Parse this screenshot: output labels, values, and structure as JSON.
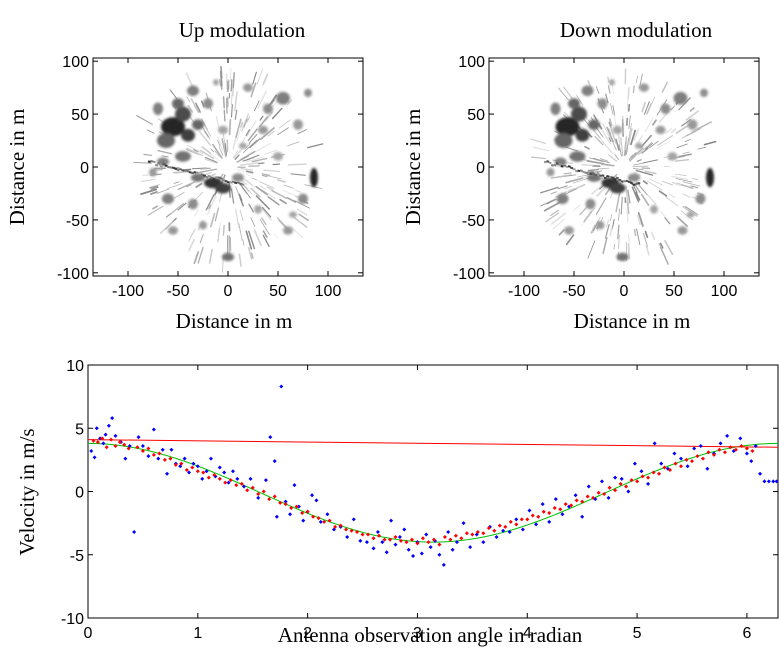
{
  "chart_data": [
    {
      "type": "heatmap",
      "title": "Up modulation",
      "xlabel": "Distance in m",
      "ylabel": "Distance in m",
      "xlim": [
        -135,
        135
      ],
      "ylim": [
        -103,
        103
      ],
      "xticks": [
        -100,
        -50,
        0,
        50,
        100
      ],
      "yticks": [
        -100,
        -50,
        0,
        50,
        100
      ],
      "grid": false,
      "colormap": "grayscale",
      "radius_max": 90
    },
    {
      "type": "heatmap",
      "title": "Down modulation",
      "xlabel": "Distance in m",
      "ylabel": "Distance in m",
      "xlim": [
        -135,
        135
      ],
      "ylim": [
        -103,
        103
      ],
      "xticks": [
        -100,
        -50,
        0,
        50,
        100
      ],
      "yticks": [
        -100,
        -50,
        0,
        50,
        100
      ],
      "grid": false,
      "colormap": "grayscale",
      "radius_max": 90
    },
    {
      "type": "scatter",
      "title": "",
      "xlabel": "Antenna observation angle in radian",
      "ylabel": "Velocity in m/s",
      "xlim": [
        0,
        6.2832
      ],
      "ylim": [
        -10,
        10
      ],
      "xticks": [
        0,
        1,
        2,
        3,
        4,
        5,
        6
      ],
      "yticks": [
        -10,
        -5,
        0,
        5,
        10
      ],
      "grid": false,
      "series": [
        {
          "kind": "points",
          "color": "#0000ff",
          "x": [
            0.03,
            0.06,
            0.08,
            0.11,
            0.14,
            0.16,
            0.19,
            0.22,
            0.25,
            0.3,
            0.34,
            0.38,
            0.42,
            0.46,
            0.5,
            0.55,
            0.6,
            0.64,
            0.68,
            0.72,
            0.76,
            0.8,
            0.84,
            0.88,
            0.92,
            0.96,
            1.0,
            1.04,
            1.08,
            1.12,
            1.16,
            1.2,
            1.24,
            1.28,
            1.32,
            1.36,
            1.42,
            1.48,
            1.55,
            1.62,
            1.66,
            1.7,
            1.72,
            1.76,
            1.8,
            1.84,
            1.88,
            1.92,
            1.96,
            2.0,
            2.04,
            2.08,
            2.12,
            2.18,
            2.24,
            2.3,
            2.36,
            2.42,
            2.48,
            2.54,
            2.6,
            2.64,
            2.68,
            2.72,
            2.76,
            2.8,
            2.84,
            2.88,
            2.92,
            2.96,
            3.0,
            3.04,
            3.08,
            3.12,
            3.16,
            3.2,
            3.24,
            3.28,
            3.32,
            3.36,
            3.42,
            3.48,
            3.54,
            3.6,
            3.66,
            3.72,
            3.78,
            3.84,
            3.9,
            3.96,
            4.02,
            4.08,
            4.14,
            4.2,
            4.26,
            4.32,
            4.38,
            4.44,
            4.5,
            4.56,
            4.62,
            4.68,
            4.74,
            4.8,
            4.86,
            4.92,
            4.98,
            5.04,
            5.1,
            5.16,
            5.22,
            5.28,
            5.34,
            5.4,
            5.46,
            5.52,
            5.58,
            5.64,
            5.7,
            5.76,
            5.82,
            5.88,
            5.94,
            6.0,
            6.04,
            6.08,
            6.12,
            6.16,
            6.2,
            6.24,
            6.27
          ],
          "y": [
            3.2,
            2.7,
            5.0,
            4.2,
            3.8,
            4.5,
            5.2,
            5.8,
            4.4,
            3.9,
            2.6,
            3.6,
            -3.2,
            4.3,
            3.6,
            2.8,
            4.9,
            2.6,
            3.3,
            1.4,
            3.3,
            2.2,
            2.0,
            2.6,
            1.5,
            2.2,
            2.0,
            1.0,
            1.6,
            2.6,
            1.2,
            1.9,
            1.5,
            0.7,
            1.6,
            1.0,
            0.4,
            1.0,
            -0.5,
            0.9,
            4.3,
            2.4,
            -2.0,
            8.3,
            -0.8,
            -1.8,
            0.5,
            -1.2,
            -2.3,
            -1.6,
            -0.3,
            -0.7,
            -2.4,
            -1.8,
            -3.0,
            -2.8,
            -3.6,
            -2.2,
            -3.9,
            -4.0,
            -4.5,
            -3.2,
            -4.0,
            -4.8,
            -2.3,
            -4.2,
            -3.6,
            -3.0,
            -4.6,
            -5.1,
            -4.0,
            -4.9,
            -3.4,
            -4.4,
            -3.9,
            -5.0,
            -5.8,
            -3.2,
            -4.6,
            -4.0,
            -2.5,
            -4.4,
            -3.4,
            -4.0,
            -2.8,
            -3.6,
            -3.1,
            -3.2,
            -2.2,
            -3.0,
            -1.5,
            -2.6,
            -1.0,
            -2.4,
            -0.6,
            -1.8,
            -1.2,
            -0.3,
            -2.0,
            0.4,
            -0.6,
            0.8,
            -0.5,
            1.1,
            1.0,
            0.0,
            2.2,
            1.6,
            0.6,
            3.8,
            2.2,
            1.8,
            3.0,
            2.6,
            2.0,
            3.4,
            3.6,
            1.8,
            3.0,
            3.8,
            4.4,
            3.2,
            4.2,
            3.0,
            2.4,
            3.6,
            1.4,
            0.8,
            0.8,
            0.8,
            0.8
          ]
        },
        {
          "kind": "points",
          "color": "#ff0000",
          "x": [
            0.05,
            0.09,
            0.13,
            0.17,
            0.21,
            0.25,
            0.29,
            0.33,
            0.37,
            0.45,
            0.5,
            0.55,
            0.6,
            0.65,
            0.7,
            0.75,
            0.8,
            0.85,
            0.9,
            0.95,
            1.0,
            1.05,
            1.1,
            1.15,
            1.2,
            1.25,
            1.3,
            1.35,
            1.4,
            1.45,
            1.5,
            1.55,
            1.6,
            1.65,
            1.7,
            1.75,
            1.8,
            1.85,
            1.9,
            1.95,
            2.0,
            2.05,
            2.1,
            2.15,
            2.2,
            2.25,
            2.3,
            2.35,
            2.4,
            2.45,
            2.5,
            2.55,
            2.6,
            2.65,
            2.7,
            2.75,
            2.8,
            2.85,
            2.9,
            2.95,
            3.0,
            3.05,
            3.1,
            3.15,
            3.2,
            3.25,
            3.3,
            3.35,
            3.4,
            3.45,
            3.5,
            3.55,
            3.6,
            3.65,
            3.7,
            3.75,
            3.8,
            3.85,
            3.9,
            3.95,
            4.0,
            4.05,
            4.1,
            4.15,
            4.2,
            4.25,
            4.3,
            4.35,
            4.4,
            4.45,
            4.5,
            4.55,
            4.6,
            4.65,
            4.7,
            4.75,
            4.8,
            4.85,
            4.9,
            4.95,
            5.0,
            5.05,
            5.1,
            5.15,
            5.2,
            5.25,
            5.3,
            5.35,
            5.4,
            5.45,
            5.5,
            5.55,
            5.6,
            5.65,
            5.7,
            5.75,
            5.8,
            5.85,
            5.9,
            5.95,
            6.0,
            6.05
          ],
          "y": [
            4.0,
            3.9,
            4.2,
            3.5,
            4.1,
            3.6,
            3.9,
            3.7,
            3.4,
            3.5,
            3.2,
            3.4,
            2.9,
            3.0,
            2.5,
            2.6,
            2.1,
            2.2,
            1.7,
            1.9,
            1.6,
            1.5,
            1.1,
            1.3,
            1.0,
            0.7,
            0.9,
            0.5,
            0.6,
            0.1,
            0.3,
            -0.2,
            0.0,
            -0.6,
            -0.4,
            -0.9,
            -1.0,
            -1.3,
            -1.2,
            -1.7,
            -1.6,
            -2.0,
            -2.1,
            -2.4,
            -2.3,
            -2.8,
            -2.7,
            -3.0,
            -3.1,
            -3.2,
            -3.4,
            -3.4,
            -3.7,
            -3.5,
            -3.8,
            -3.8,
            -3.6,
            -3.9,
            -4.0,
            -3.8,
            -4.1,
            -3.7,
            -4.0,
            -3.8,
            -4.2,
            -3.6,
            -3.8,
            -3.5,
            -3.7,
            -3.3,
            -3.4,
            -3.2,
            -3.3,
            -2.9,
            -3.1,
            -2.7,
            -2.8,
            -2.4,
            -2.6,
            -2.2,
            -2.2,
            -1.9,
            -2.0,
            -1.6,
            -1.7,
            -1.3,
            -1.4,
            -1.0,
            -1.1,
            -0.7,
            -0.8,
            -0.4,
            -0.5,
            -0.1,
            -0.2,
            0.3,
            0.1,
            0.6,
            0.4,
            0.9,
            0.8,
            1.2,
            1.1,
            1.5,
            1.4,
            1.9,
            1.7,
            2.2,
            2.0,
            2.5,
            2.4,
            2.8,
            2.6,
            3.1,
            2.9,
            3.3,
            3.1,
            3.5,
            3.3,
            3.6,
            3.4,
            3.2
          ]
        },
        {
          "kind": "line",
          "color": "#00c000",
          "model": "a + b*cos(x - phi)",
          "a": -0.1,
          "b": 3.9,
          "phi": 0.0,
          "x_range": [
            0,
            6.2832
          ]
        },
        {
          "kind": "line",
          "color": "#ff0000",
          "x": [
            0,
            6.2832
          ],
          "y": [
            4.1,
            3.5
          ]
        }
      ]
    }
  ]
}
